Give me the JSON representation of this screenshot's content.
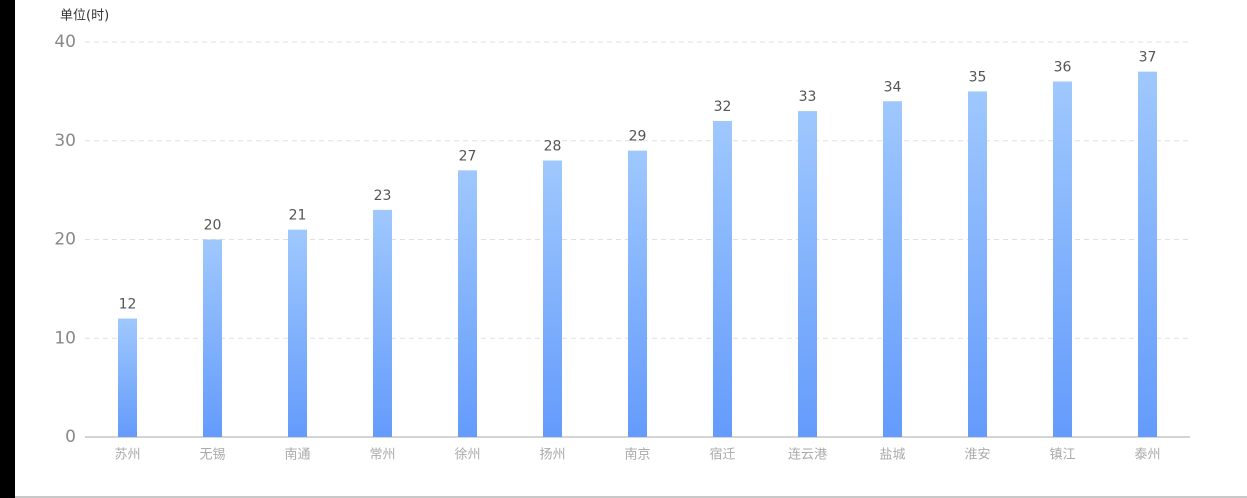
{
  "chart_data": {
    "type": "bar",
    "y_label": "单位(时)",
    "categories": [
      "苏州",
      "无锡",
      "南通",
      "常州",
      "徐州",
      "扬州",
      "南京",
      "宿迁",
      "连云港",
      "盐城",
      "淮安",
      "镇江",
      "泰州"
    ],
    "values": [
      12,
      20,
      21,
      23,
      27,
      28,
      29,
      32,
      33,
      34,
      35,
      36,
      37
    ],
    "gradient": [
      "#9fc8fd",
      "#649bfc"
    ],
    "ylim": [
      0,
      40
    ],
    "yticks": [
      0,
      10,
      20,
      30,
      40
    ],
    "grid": true
  }
}
